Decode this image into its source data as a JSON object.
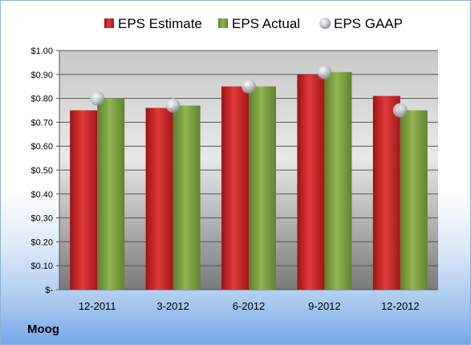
{
  "company": "Moog",
  "colors": {
    "estimate": "#cc1f1f",
    "actual": "#7fa441",
    "gaap": "#b9c0c9"
  },
  "chart_data": {
    "type": "bar",
    "title": "",
    "xlabel": "",
    "ylabel": "",
    "categories": [
      "12-2011",
      "3-2012",
      "6-2012",
      "9-2012",
      "12-2012"
    ],
    "series": [
      {
        "name": "EPS Estimate",
        "type": "bar",
        "values": [
          0.75,
          0.76,
          0.85,
          0.9,
          0.81
        ]
      },
      {
        "name": "EPS Actual",
        "type": "bar",
        "values": [
          0.8,
          0.77,
          0.85,
          0.91,
          0.75
        ]
      },
      {
        "name": "EPS GAAP",
        "type": "scatter",
        "values": [
          0.8,
          0.77,
          0.85,
          0.91,
          0.75
        ]
      }
    ],
    "ylim": [
      0,
      1.0
    ],
    "yticks": [
      0,
      0.1,
      0.2,
      0.3,
      0.4,
      0.5,
      0.6,
      0.7,
      0.8,
      0.9,
      1.0
    ],
    "ytick_labels": [
      "$-",
      "$0.10",
      "$0.20",
      "$0.30",
      "$0.40",
      "$0.50",
      "$0.60",
      "$0.70",
      "$0.80",
      "$0.90",
      "$1.00"
    ],
    "grid": true,
    "legend": "top"
  }
}
